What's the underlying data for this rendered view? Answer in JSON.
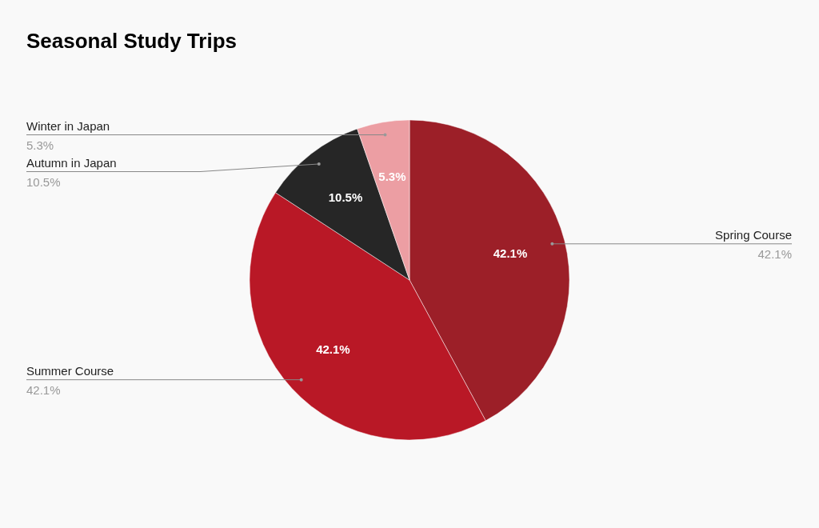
{
  "chart_data": {
    "type": "pie",
    "title": "Seasonal Study Trips",
    "categories": [
      "Spring Course",
      "Summer Course",
      "Autumn in Japan",
      "Winter in Japan"
    ],
    "values": [
      42.1,
      42.1,
      10.5,
      5.3
    ],
    "colors": [
      "#9c1f28",
      "#b91826",
      "#262626",
      "#ec9ea3"
    ],
    "value_labels": [
      "42.1%",
      "42.1%",
      "10.5%",
      "5.3%"
    ]
  }
}
